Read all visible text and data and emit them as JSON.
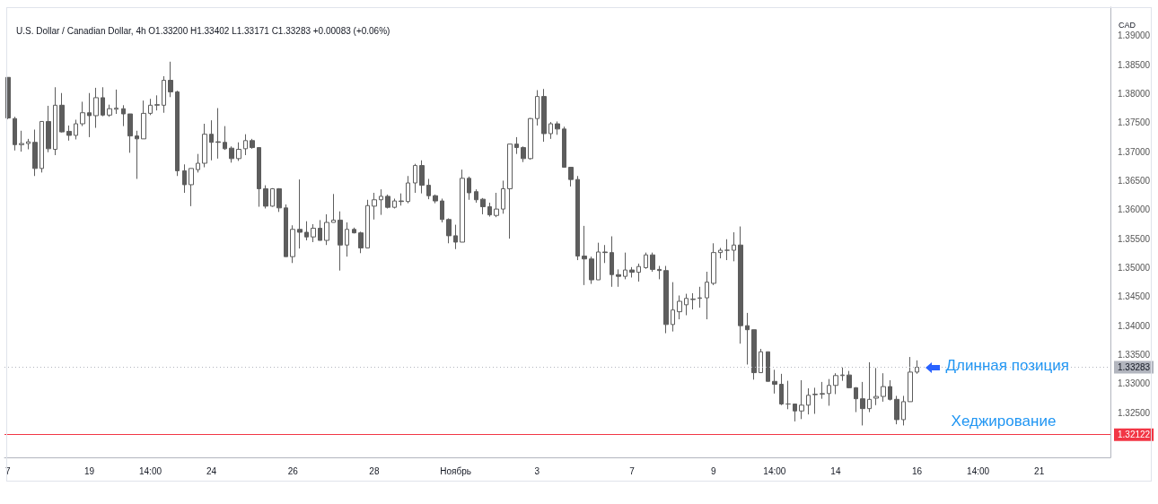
{
  "chart_data": {
    "type": "candlestick",
    "title": "U.S. Dollar / Canadian Dollar, 4h O1.33200 H1.33402 L1.33171 C1.33283 +0.00083 (+0.06%)",
    "ylabel": "CAD",
    "color": "#5d5d5d",
    "categories": [
      "7",
      null,
      null,
      null,
      null,
      null,
      null,
      null,
      null,
      null,
      null,
      null,
      "19",
      null,
      null,
      null,
      null,
      null,
      null,
      null,
      null,
      "14:00",
      null,
      null,
      null,
      null,
      null,
      null,
      null,
      null,
      "24",
      null,
      null,
      null,
      null,
      null,
      null,
      null,
      null,
      null,
      null,
      null,
      "26",
      null,
      null,
      null,
      null,
      null,
      null,
      null,
      null,
      null,
      null,
      null,
      "28",
      null,
      null,
      null,
      null,
      null,
      null,
      null,
      null,
      null,
      null,
      null,
      "Ноябрь",
      null,
      null,
      null,
      null,
      null,
      null,
      null,
      null,
      null,
      null,
      null,
      "3",
      null,
      null,
      null,
      null,
      null,
      null,
      null,
      null,
      null,
      null,
      null,
      null,
      null,
      "7",
      null,
      null,
      null,
      null,
      null,
      null,
      null,
      null,
      null,
      null,
      null,
      "9",
      null,
      null,
      null,
      null,
      null,
      null,
      null,
      null,
      "14:00",
      null,
      null,
      null,
      null,
      null,
      null,
      null,
      null,
      "14",
      null,
      null,
      null,
      null,
      null,
      null,
      null,
      null,
      null,
      null,
      null,
      "16",
      null,
      null,
      null,
      null,
      null,
      null,
      null,
      null,
      "14:00",
      null,
      null,
      null,
      null,
      null,
      null,
      null,
      null,
      "21",
      null,
      null,
      null,
      null,
      null,
      null,
      null,
      null,
      null,
      null
    ],
    "ohlc": [
      [
        1.3828,
        1.3828,
        1.3756,
        1.3758
      ],
      [
        1.3757,
        1.376,
        1.3702,
        1.3712
      ],
      [
        1.3712,
        1.3736,
        1.37,
        1.3714
      ],
      [
        1.3714,
        1.3722,
        1.3704,
        1.3717
      ],
      [
        1.3716,
        1.3738,
        1.3658,
        1.3671
      ],
      [
        1.3671,
        1.3752,
        1.3664,
        1.3752
      ],
      [
        1.3752,
        1.3779,
        1.3699,
        1.3705
      ],
      [
        1.3704,
        1.3811,
        1.3694,
        1.378
      ],
      [
        1.378,
        1.3801,
        1.3733,
        1.3734
      ],
      [
        1.3735,
        1.3745,
        1.3719,
        1.3728
      ],
      [
        1.3728,
        1.3755,
        1.3721,
        1.3748
      ],
      [
        1.3748,
        1.3786,
        1.3744,
        1.3767
      ],
      [
        1.3767,
        1.3801,
        1.3725,
        1.3762
      ],
      [
        1.3762,
        1.381,
        1.3741,
        1.3793
      ],
      [
        1.3793,
        1.3811,
        1.3761,
        1.3763
      ],
      [
        1.3763,
        1.3781,
        1.376,
        1.3774
      ],
      [
        1.3773,
        1.3807,
        1.3765,
        1.3775
      ],
      [
        1.3774,
        1.378,
        1.3744,
        1.3765
      ],
      [
        1.3765,
        1.3765,
        1.3698,
        1.3727
      ],
      [
        1.3727,
        1.3736,
        1.3653,
        1.3722
      ],
      [
        1.3722,
        1.3788,
        1.3722,
        1.3766
      ],
      [
        1.3766,
        1.3791,
        1.3763,
        1.378
      ],
      [
        1.378,
        1.3797,
        1.3771,
        1.3781
      ],
      [
        1.378,
        1.383,
        1.3767,
        1.3823
      ],
      [
        1.3823,
        1.3855,
        1.3794,
        1.3803
      ],
      [
        1.3803,
        1.3805,
        1.3658,
        1.3667
      ],
      [
        1.3667,
        1.3678,
        1.3629,
        1.3643
      ],
      [
        1.3643,
        1.3671,
        1.3606,
        1.3671
      ],
      [
        1.3669,
        1.3696,
        1.3664,
        1.368
      ],
      [
        1.368,
        1.3748,
        1.3673,
        1.373
      ],
      [
        1.373,
        1.3754,
        1.3685,
        1.3716
      ],
      [
        1.3717,
        1.3775,
        1.3688,
        1.3716
      ],
      [
        1.3716,
        1.3744,
        1.3703,
        1.3705
      ],
      [
        1.3706,
        1.3709,
        1.3681,
        1.3688
      ],
      [
        1.3688,
        1.3716,
        1.3684,
        1.3704
      ],
      [
        1.3705,
        1.373,
        1.3694,
        1.3719
      ],
      [
        1.3719,
        1.3722,
        1.3705,
        1.3707
      ],
      [
        1.3707,
        1.3707,
        1.3605,
        1.3636
      ],
      [
        1.3636,
        1.3642,
        1.3602,
        1.3606
      ],
      [
        1.3606,
        1.3637,
        1.3605,
        1.3636
      ],
      [
        1.3636,
        1.3637,
        1.3596,
        1.3603
      ],
      [
        1.3603,
        1.3609,
        1.3519,
        1.3519
      ],
      [
        1.3519,
        1.3573,
        1.3508,
        1.3566
      ],
      [
        1.3566,
        1.3652,
        1.3533,
        1.3561
      ],
      [
        1.3561,
        1.358,
        1.3547,
        1.3553
      ],
      [
        1.3553,
        1.3575,
        1.3544,
        1.3568
      ],
      [
        1.3568,
        1.3582,
        1.3547,
        1.3547
      ],
      [
        1.3547,
        1.3592,
        1.3539,
        1.3578
      ],
      [
        1.3578,
        1.3627,
        1.3578,
        1.3582
      ],
      [
        1.3582,
        1.3597,
        1.3495,
        1.3539
      ],
      [
        1.3539,
        1.3578,
        1.3519,
        1.3566
      ],
      [
        1.3566,
        1.3569,
        1.3559,
        1.356
      ],
      [
        1.356,
        1.3562,
        1.3525,
        1.3534
      ],
      [
        1.3534,
        1.3617,
        1.3534,
        1.3607
      ],
      [
        1.3606,
        1.3629,
        1.3583,
        1.3617
      ],
      [
        1.3617,
        1.3635,
        1.3591,
        1.3623
      ],
      [
        1.3623,
        1.3626,
        1.3602,
        1.3604
      ],
      [
        1.3604,
        1.3619,
        1.3602,
        1.3615
      ],
      [
        1.3615,
        1.3628,
        1.3607,
        1.3614
      ],
      [
        1.3614,
        1.3658,
        1.3611,
        1.3646
      ],
      [
        1.3646,
        1.3679,
        1.3629,
        1.3676
      ],
      [
        1.3676,
        1.3685,
        1.3628,
        1.3642
      ],
      [
        1.3642,
        1.3653,
        1.3618,
        1.3624
      ],
      [
        1.3624,
        1.3626,
        1.3611,
        1.3615
      ],
      [
        1.3615,
        1.3619,
        1.3578,
        1.3583
      ],
      [
        1.3583,
        1.3585,
        1.3542,
        1.3555
      ],
      [
        1.3555,
        1.3574,
        1.3532,
        1.3544
      ],
      [
        1.3544,
        1.3669,
        1.3544,
        1.3654
      ],
      [
        1.3654,
        1.3657,
        1.3617,
        1.3629
      ],
      [
        1.3631,
        1.3635,
        1.3612,
        1.3617
      ],
      [
        1.3618,
        1.362,
        1.3592,
        1.3605
      ],
      [
        1.3605,
        1.3612,
        1.3588,
        1.3591
      ],
      [
        1.359,
        1.3629,
        1.3587,
        1.3601
      ],
      [
        1.3601,
        1.365,
        1.3593,
        1.3636
      ],
      [
        1.3636,
        1.3713,
        1.355,
        1.3713
      ],
      [
        1.3713,
        1.3725,
        1.3696,
        1.3707
      ],
      [
        1.3707,
        1.3709,
        1.3682,
        1.3688
      ],
      [
        1.3688,
        1.3758,
        1.3686,
        1.3757
      ],
      [
        1.3757,
        1.3806,
        1.3745,
        1.3795
      ],
      [
        1.3795,
        1.3808,
        1.3717,
        1.3731
      ],
      [
        1.3731,
        1.3751,
        1.3722,
        1.3748
      ],
      [
        1.3748,
        1.3752,
        1.3729,
        1.3739
      ],
      [
        1.3739,
        1.3743,
        1.3673,
        1.3673
      ],
      [
        1.3673,
        1.3673,
        1.364,
        1.3652
      ],
      [
        1.3652,
        1.3658,
        1.3513,
        1.352
      ],
      [
        1.352,
        1.3572,
        1.347,
        1.3515
      ],
      [
        1.3515,
        1.3519,
        1.3472,
        1.3479
      ],
      [
        1.3479,
        1.3543,
        1.3479,
        1.3527
      ],
      [
        1.3527,
        1.3539,
        1.3508,
        1.3526
      ],
      [
        1.3526,
        1.3554,
        1.3467,
        1.3488
      ],
      [
        1.3488,
        1.3497,
        1.3467,
        1.3485
      ],
      [
        1.3485,
        1.3526,
        1.348,
        1.3496
      ],
      [
        1.3496,
        1.3501,
        1.3483,
        1.3492
      ],
      [
        1.3492,
        1.3507,
        1.3476,
        1.3502
      ],
      [
        1.35,
        1.3526,
        1.3498,
        1.3522
      ],
      [
        1.3522,
        1.3526,
        1.3493,
        1.3497
      ],
      [
        1.3497,
        1.3503,
        1.348,
        1.3495
      ],
      [
        1.3495,
        1.3503,
        1.3387,
        1.3402
      ],
      [
        1.3402,
        1.3475,
        1.339,
        1.3427
      ],
      [
        1.3424,
        1.3452,
        1.3411,
        1.3442
      ],
      [
        1.3436,
        1.3455,
        1.3418,
        1.3447
      ],
      [
        1.3445,
        1.3456,
        1.3428,
        1.3446
      ],
      [
        1.3447,
        1.3467,
        1.3431,
        1.3448
      ],
      [
        1.3448,
        1.3493,
        1.3411,
        1.3475
      ],
      [
        1.3473,
        1.3542,
        1.347,
        1.3526
      ],
      [
        1.3526,
        1.3534,
        1.3516,
        1.353
      ],
      [
        1.353,
        1.3549,
        1.3513,
        1.353
      ],
      [
        1.353,
        1.3561,
        1.3511,
        1.3539
      ],
      [
        1.3539,
        1.3571,
        1.3369,
        1.34
      ],
      [
        1.34,
        1.3422,
        1.3333,
        1.3393
      ],
      [
        1.3393,
        1.3393,
        1.3307,
        1.3319
      ],
      [
        1.3319,
        1.336,
        1.3319,
        1.3355
      ],
      [
        1.3355,
        1.3355,
        1.3304,
        1.3304
      ],
      [
        1.3304,
        1.3324,
        1.3283,
        1.3299
      ],
      [
        1.3299,
        1.3317,
        1.3263,
        1.3265
      ],
      [
        1.3265,
        1.3305,
        1.3256,
        1.3265
      ],
      [
        1.3265,
        1.3265,
        1.3235,
        1.3253
      ],
      [
        1.3253,
        1.3306,
        1.3239,
        1.3263
      ],
      [
        1.3263,
        1.3292,
        1.3247,
        1.328
      ],
      [
        1.3281,
        1.3293,
        1.3248,
        1.3282
      ],
      [
        1.3282,
        1.3303,
        1.3274,
        1.3283
      ],
      [
        1.3283,
        1.3308,
        1.3262,
        1.3297
      ],
      [
        1.3297,
        1.3318,
        1.3282,
        1.3314
      ],
      [
        1.3314,
        1.3328,
        1.3305,
        1.3315
      ],
      [
        1.3315,
        1.3322,
        1.3292,
        1.3293
      ],
      [
        1.3293,
        1.3294,
        1.3251,
        1.3274
      ],
      [
        1.3274,
        1.3303,
        1.3228,
        1.3257
      ],
      [
        1.3257,
        1.3337,
        1.3251,
        1.3273
      ],
      [
        1.3275,
        1.3327,
        1.3263,
        1.3278
      ],
      [
        1.3278,
        1.3318,
        1.3269,
        1.3295
      ],
      [
        1.3295,
        1.3306,
        1.3271,
        1.3273
      ],
      [
        1.3273,
        1.3279,
        1.323,
        1.3238
      ],
      [
        1.3238,
        1.3279,
        1.3228,
        1.3269
      ],
      [
        1.3269,
        1.3346,
        1.3269,
        1.332
      ],
      [
        1.332,
        1.33402,
        1.33171,
        1.33283
      ],
      null,
      null,
      null,
      null,
      null,
      null,
      null,
      null,
      null,
      null,
      null,
      null,
      null,
      null,
      null,
      null,
      null,
      null,
      null,
      null,
      null,
      null,
      null,
      null,
      null,
      null,
      null,
      null
    ],
    "ylim": [
      1.3173,
      1.3949
    ],
    "yticks": [
      {
        "value": 1.325,
        "label": "1.32500"
      },
      {
        "value": 1.33,
        "label": "1.33000"
      },
      {
        "value": 1.335,
        "label": "1.33500"
      },
      {
        "value": 1.34,
        "label": "1.34000"
      },
      {
        "value": 1.345,
        "label": "1.34500"
      },
      {
        "value": 1.35,
        "label": "1.35000"
      },
      {
        "value": 1.355,
        "label": "1.35500"
      },
      {
        "value": 1.36,
        "label": "1.36000"
      },
      {
        "value": 1.365,
        "label": "1.36500"
      },
      {
        "value": 1.37,
        "label": "1.37000"
      },
      {
        "value": 1.375,
        "label": "1.37500"
      },
      {
        "value": 1.38,
        "label": "1.38000"
      },
      {
        "value": 1.385,
        "label": "1.38500"
      },
      {
        "value": 1.39,
        "label": "1.39000"
      }
    ],
    "ref_lines": [
      {
        "axis": "y",
        "value": 1.33283,
        "label": "1.33283",
        "color": "#b2b5be",
        "line_style": "dotted"
      },
      {
        "axis": "y",
        "value": 1.32122,
        "label": "1.32122",
        "color": "#f23645",
        "line_style": "solid"
      }
    ],
    "annotations": [
      "Длинная позиция",
      "Хеджирование"
    ]
  }
}
